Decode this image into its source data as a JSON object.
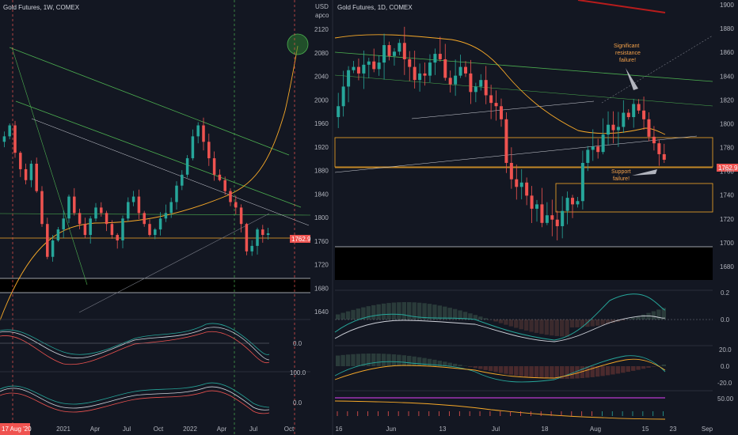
{
  "colors": {
    "background": "#131722",
    "up": "#26a69a",
    "down": "#ef5350",
    "grid": "#1e222d",
    "price_tag": "#ef5350",
    "ma": "#f7a928",
    "trend": "#4caf50",
    "dotted_red": "#ef5350",
    "dotted_green": "#4caf50"
  },
  "left_chart": {
    "title": "Gold Futures, 1W, COMEX",
    "price_label": "1762.9",
    "bottom_left_label": "17 Aug '20",
    "x_ticks": [
      "2021",
      "Apr",
      "Jul",
      "Oct",
      "2022",
      "Apr",
      "Jul",
      "Oct"
    ],
    "osc1_label": "0.0",
    "osc2_label": "100.0",
    "osc3_label": "0.0",
    "axis": {
      "currency": "USD",
      "mode": "арсо",
      "ticks": [
        2120,
        2080,
        2040,
        2000,
        1960,
        1920,
        1880,
        1840,
        1800,
        1760,
        1720,
        1680,
        1640
      ]
    }
  },
  "right_chart": {
    "title": "Gold Futures, 1D, COMEX",
    "price_label": "1762.9",
    "annotation_resistance": [
      "Significant",
      "resistance",
      "failure!"
    ],
    "annotation_support": [
      "Support",
      "failure!"
    ],
    "x_ticks": [
      "16",
      "Jun",
      "13",
      "Jul",
      "18",
      "Aug",
      "15",
      "23",
      "Sep"
    ],
    "axis_ticks": [
      1900,
      1880,
      1860,
      1840,
      1820,
      1800,
      1780,
      1760,
      1740,
      1720,
      1700,
      1680
    ],
    "osc1_ticks": [
      "0.2",
      "0.0"
    ],
    "osc2_ticks": [
      "20.0",
      "0.0",
      "-20.0"
    ],
    "osc3_tick": "50.00"
  },
  "chart_data": [
    {
      "type": "candlestick",
      "title": "Gold Futures, 1W, COMEX",
      "ylim": [
        1620,
        2160
      ],
      "x": [
        "17 Aug '20",
        "2021",
        "Apr",
        "Jul",
        "Oct",
        "2022",
        "Apr",
        "Jul",
        "Oct"
      ],
      "closes": [
        1940,
        1960,
        1910,
        1880,
        1860,
        1890,
        1840,
        1780,
        1720,
        1750,
        1770,
        1790,
        1830,
        1800,
        1780,
        1760,
        1790,
        1810,
        1800,
        1780,
        1760,
        1750,
        1790,
        1820,
        1830,
        1800,
        1780,
        1760,
        1770,
        1790,
        1800,
        1820,
        1850,
        1870,
        1900,
        1940,
        1960,
        1930,
        1900,
        1870,
        1860,
        1840,
        1820,
        1810,
        1780,
        1730,
        1740,
        1770,
        1760,
        1762.9
      ],
      "last": 1762.9
    },
    {
      "type": "candlestick",
      "title": "Gold Futures, 1D, COMEX",
      "ylim": [
        1665,
        1905
      ],
      "x": [
        "16",
        "Jun",
        "13",
        "Jul",
        "18",
        "Aug",
        "15",
        "23",
        "Sep"
      ],
      "closes": [
        1812,
        1830,
        1845,
        1848,
        1842,
        1850,
        1853,
        1846,
        1852,
        1868,
        1858,
        1862,
        1870,
        1855,
        1848,
        1836,
        1842,
        1840,
        1852,
        1860,
        1855,
        1838,
        1832,
        1840,
        1848,
        1842,
        1825,
        1830,
        1836,
        1822,
        1815,
        1812,
        1800,
        1760,
        1745,
        1738,
        1742,
        1730,
        1718,
        1722,
        1705,
        1712,
        1708,
        1702,
        1716,
        1728,
        1722,
        1725,
        1760,
        1772,
        1775,
        1770,
        1786,
        1795,
        1790,
        1793,
        1806,
        1802,
        1814,
        1808,
        1800,
        1784,
        1778,
        1768,
        1762.9
      ],
      "last": 1762.9,
      "annotations": [
        "Significant resistance failure!",
        "Support failure!"
      ]
    }
  ]
}
